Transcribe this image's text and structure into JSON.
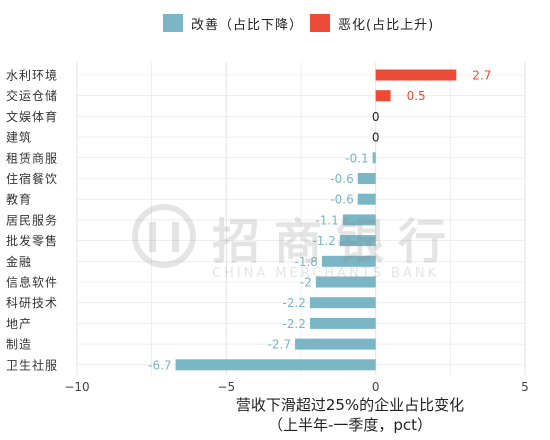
{
  "legend": {
    "improve_label": "改善（占比下降）",
    "worsen_label": "恶化(占比上升)"
  },
  "colors": {
    "improve": "#7ab6c6",
    "worsen": "#ee4b37",
    "grid": "#e3e3e3",
    "axis_text": "#444444",
    "label_text": "#333333"
  },
  "watermark": {
    "cn": "招商银行",
    "en": "CHINA MERCHANTS BANK"
  },
  "chart_data": {
    "type": "bar",
    "orientation": "horizontal",
    "xlabel_line1": "营收下滑超过25%的企业占比变化",
    "xlabel_line2": "（上半年-一季度，pct）",
    "xlim": [
      -10,
      5
    ],
    "xticks": [
      -10,
      -5,
      0,
      5
    ],
    "grid": true,
    "legend_position": "top",
    "categories": [
      "水利环境",
      "交运仓储",
      "文娱体育",
      "建筑",
      "租赁商服",
      "住宿餐饮",
      "教育",
      "居民服务",
      "批发零售",
      "金融",
      "信息软件",
      "科研技术",
      "地产",
      "制造",
      "卫生社服"
    ],
    "values": [
      2.7,
      0.5,
      0,
      0,
      -0.1,
      -0.6,
      -0.6,
      -1.1,
      -1.2,
      -1.8,
      -2,
      -2.2,
      -2.2,
      -2.7,
      -6.7
    ],
    "value_labels": [
      "2.7",
      "0.5",
      "0",
      "0",
      "-0.1",
      "-0.6",
      "-0.6",
      "-1.1",
      "-1.2",
      "-1.8",
      "-2",
      "-2.2",
      "-2.2",
      "-2.7",
      "-6.7"
    ]
  }
}
